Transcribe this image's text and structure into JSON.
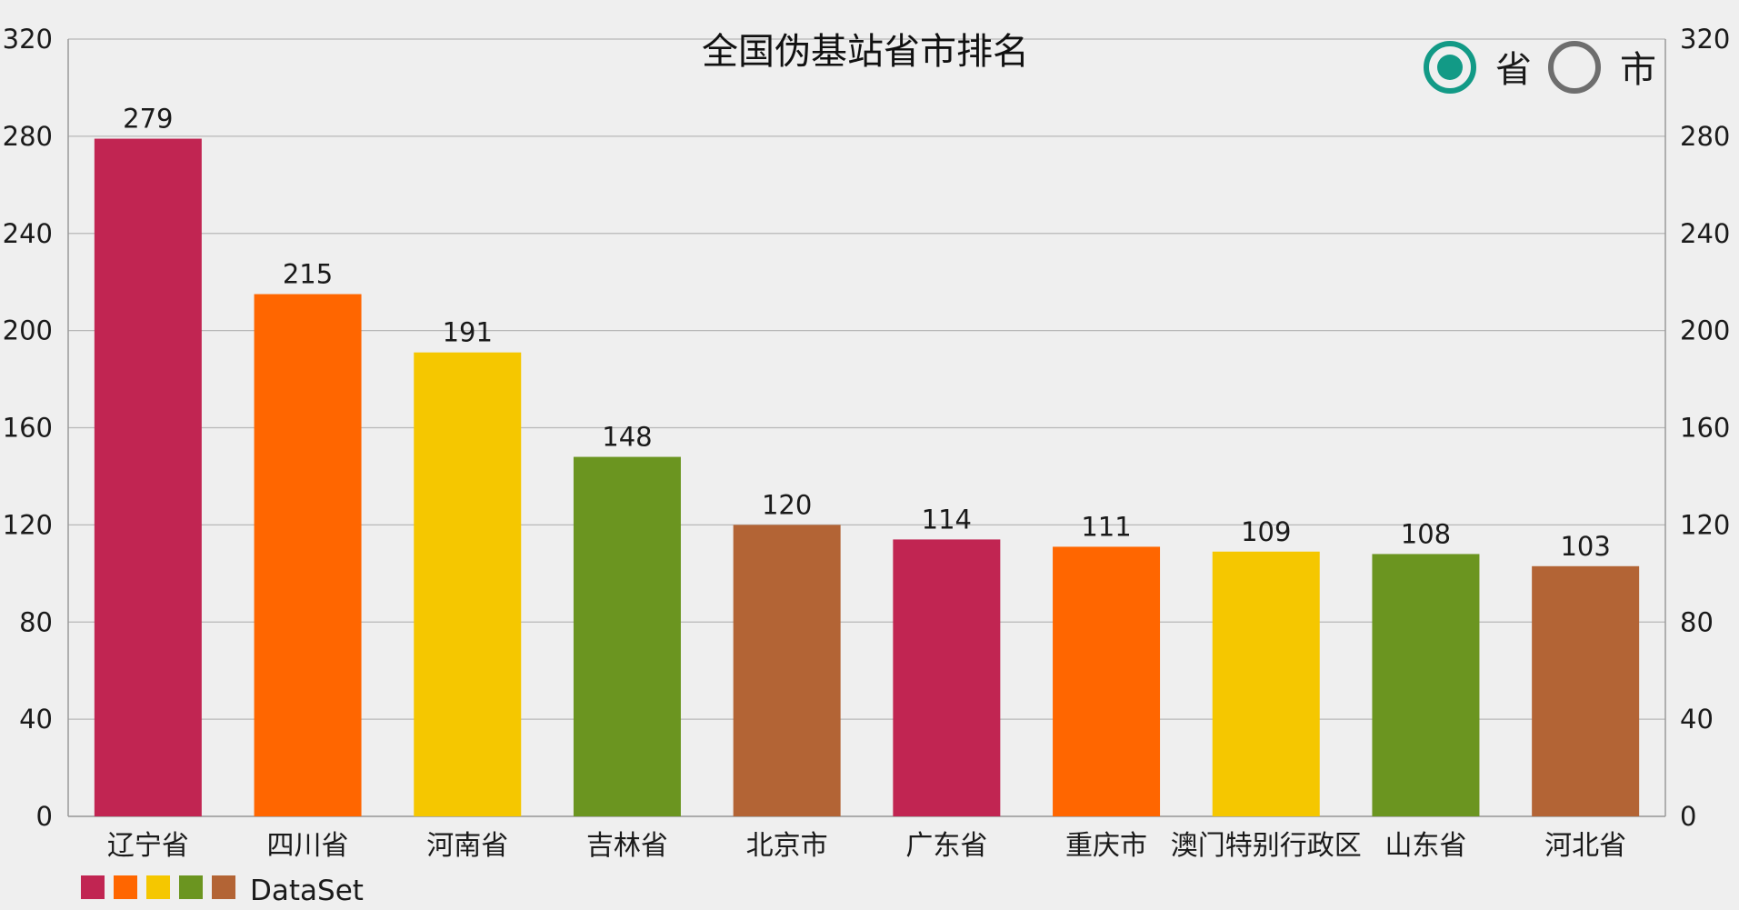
{
  "chart_data": {
    "type": "bar",
    "title": "全国伪基站省市排名",
    "categories": [
      "辽宁省",
      "四川省",
      "河南省",
      "吉林省",
      "北京市",
      "广东省",
      "重庆市",
      "澳门特别行政区",
      "山东省",
      "河北省"
    ],
    "series": [
      {
        "name": "DataSet",
        "values": [
          279,
          215,
          191,
          148,
          120,
          114,
          111,
          109,
          108,
          103
        ]
      }
    ],
    "bar_colors": [
      "#c12552",
      "#ff6600",
      "#f5c700",
      "#6b9520",
      "#b36435",
      "#c12552",
      "#ff6600",
      "#f5c700",
      "#6b9520",
      "#b36435"
    ],
    "legend_swatches": [
      "#c12552",
      "#ff6600",
      "#f5c700",
      "#6b9520",
      "#b36435"
    ],
    "ylim": [
      0,
      320
    ],
    "yticks": [
      0,
      40,
      80,
      120,
      160,
      200,
      240,
      280,
      320
    ],
    "right_axis": true,
    "grid": true,
    "legend": "bottom-left",
    "xlabel": "",
    "ylabel": ""
  },
  "toggle": {
    "options": [
      {
        "label": "省",
        "selected": true
      },
      {
        "label": "市",
        "selected": false
      }
    ],
    "accent_color": "#129a86",
    "inactive_color": "#6e6e6e"
  }
}
